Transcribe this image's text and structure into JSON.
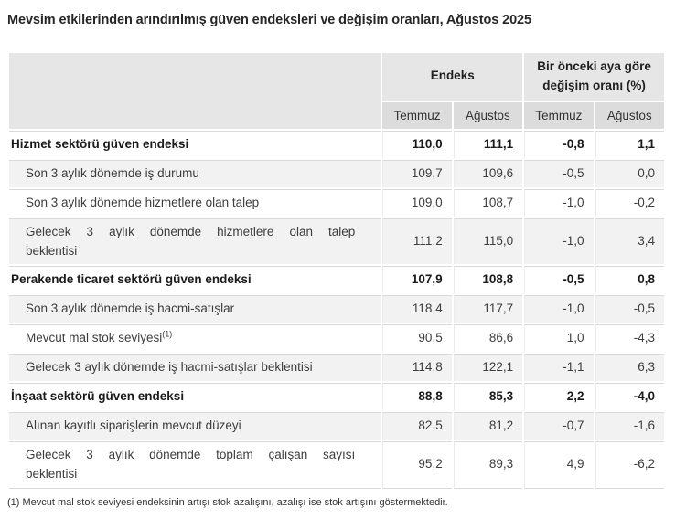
{
  "title": "Mevsim etkilerinden arındırılmış güven endeksleri ve değişim oranları, Ağustos 2025",
  "colors": {
    "header_bg": "#e6e6e6",
    "subheader_bg": "#dcdcdc",
    "stripe_bg": "#f2f2f2",
    "row_border": "#d9d9d9",
    "title_text": "#262626",
    "body_text": "#3d3d3d"
  },
  "chart_data": {
    "type": "table",
    "title": "Mevsim etkilerinden arındırılmış güven endeksleri ve değişim oranları, Ağustos 2025",
    "column_groups": [
      {
        "label": "Endeks",
        "columns": [
          "Temmuz",
          "Ağustos"
        ]
      },
      {
        "label": "Bir önceki aya göre değişim oranı (%)",
        "columns": [
          "Temmuz",
          "Ağustos"
        ]
      }
    ],
    "sub_headers": [
      "Temmuz",
      "Ağustos",
      "Temmuz",
      "Ağustos"
    ],
    "rows": [
      {
        "label": "Hizmet sektörü güven endeksi",
        "section": true,
        "values": [
          "110,0",
          "111,1",
          "-0,8",
          "1,1"
        ]
      },
      {
        "label": "Son 3 aylık dönemde iş durumu",
        "values": [
          "109,7",
          "109,6",
          "-0,5",
          "0,0"
        ]
      },
      {
        "label": "Son 3 aylık dönemde hizmetlere olan talep",
        "values": [
          "109,0",
          "108,7",
          "-1,0",
          "-0,2"
        ]
      },
      {
        "label_line1": "Gelecek 3 aylık dönemde hizmetlere olan talep",
        "label_line2": "beklentisi",
        "values": [
          "111,2",
          "115,0",
          "-1,0",
          "3,4"
        ]
      },
      {
        "label": "Perakende ticaret sektörü güven endeksi",
        "section": true,
        "values": [
          "107,9",
          "108,8",
          "-0,5",
          "0,8"
        ]
      },
      {
        "label": "Son 3 aylık dönemde iş hacmi-satışlar",
        "values": [
          "118,4",
          "117,7",
          "-1,0",
          "-0,5"
        ]
      },
      {
        "label": "Mevcut mal stok seviyesi",
        "sup": "(1)",
        "values": [
          "90,5",
          "86,6",
          "1,0",
          "-4,3"
        ]
      },
      {
        "label": "Gelecek 3 aylık dönemde iş hacmi-satışlar beklentisi",
        "values": [
          "114,8",
          "122,1",
          "-1,1",
          "6,3"
        ]
      },
      {
        "label": "İnşaat sektörü güven endeksi",
        "section": true,
        "values": [
          "88,8",
          "85,3",
          "2,2",
          "-4,0"
        ]
      },
      {
        "label": "Alınan kayıtlı siparişlerin mevcut düzeyi",
        "values": [
          "82,5",
          "81,2",
          "-0,7",
          "-1,6"
        ]
      },
      {
        "label_line1": "Gelecek 3 aylık dönemde toplam çalışan sayısı",
        "label_line2": "beklentisi",
        "values": [
          "95,2",
          "89,3",
          "4,9",
          "-6,2"
        ]
      }
    ],
    "footnote": "(1) Mevcut mal stok seviyesi endeksinin artışı stok azalışını, azalışı ise stok artışını göstermektedir."
  }
}
